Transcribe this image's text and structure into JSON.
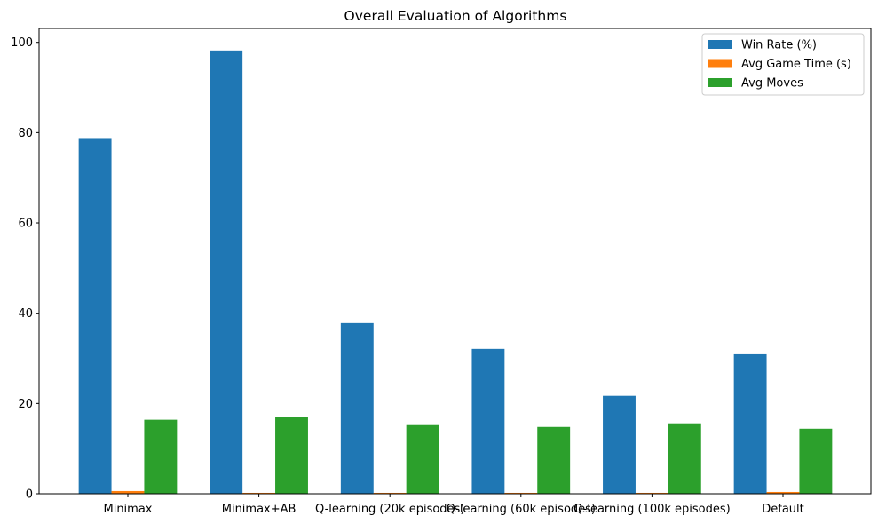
{
  "chart_data": {
    "type": "bar",
    "title": "Overall Evaluation of Algorithms",
    "xlabel": "",
    "ylabel": "",
    "categories": [
      "Minimax",
      "Minimax+AB",
      "Q-learning (20k episodes)",
      "Q-learning (60k episodes)",
      "Q-learning (100k episodes)",
      "Default"
    ],
    "series": [
      {
        "name": "Win Rate (%)",
        "color": "#1f77b4",
        "values": [
          78.8,
          98.2,
          37.8,
          32.1,
          21.7,
          30.9
        ]
      },
      {
        "name": "Avg Game Time (s)",
        "color": "#ff7f0e",
        "values": [
          0.6,
          0.2,
          0.2,
          0.2,
          0.2,
          0.4
        ]
      },
      {
        "name": "Avg Moves",
        "color": "#2ca02c",
        "values": [
          16.4,
          17.0,
          15.4,
          14.8,
          15.6,
          14.4
        ]
      }
    ],
    "ylim": [
      0,
      103
    ],
    "yticks": [
      0,
      20,
      40,
      60,
      80,
      100
    ],
    "legend_position": "top-right",
    "grid": false
  }
}
